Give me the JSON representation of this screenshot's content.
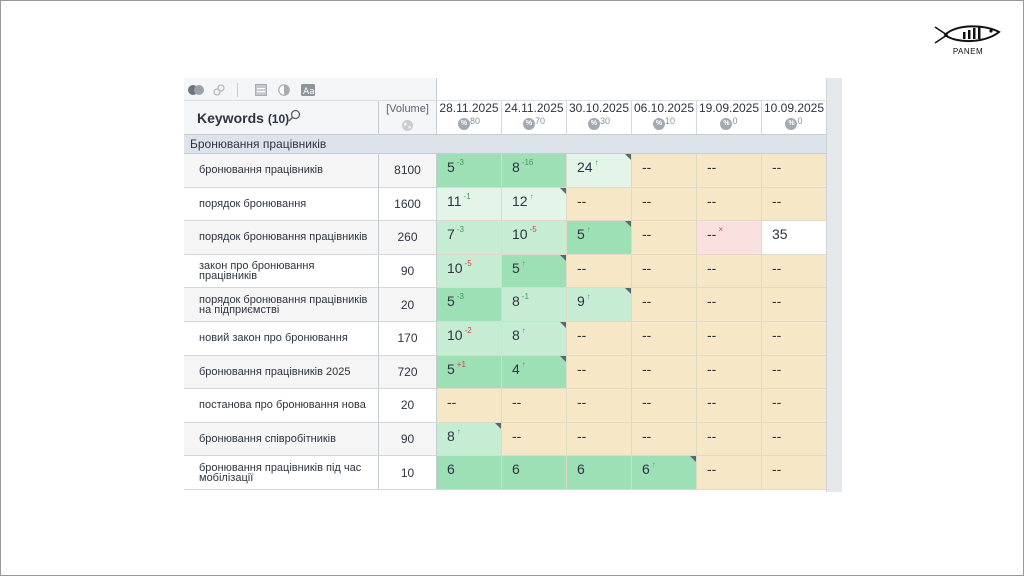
{
  "logo": {
    "name": "PANEM"
  },
  "colors": {
    "top3": "#9ee0b6",
    "top10": "#c6ecd4",
    "top20": "#e2f5e8",
    "none": "#f6e8c7",
    "lost": "#fbe0e0"
  },
  "toolbar": {
    "icons": [
      "toggle-icon",
      "link-icon",
      "calendar-icon",
      "contrast-icon",
      "text-size-icon"
    ]
  },
  "header": {
    "keywords_label": "Keywords",
    "keywords_count": "(10)",
    "volume_label": "[Volume]"
  },
  "dates": [
    {
      "date": "28.11.2025",
      "pct": "80"
    },
    {
      "date": "24.11.2025",
      "pct": "70"
    },
    {
      "date": "30.10.2025",
      "pct": "30"
    },
    {
      "date": "06.10.2025",
      "pct": "10"
    },
    {
      "date": "19.09.2025",
      "pct": "0"
    },
    {
      "date": "10.09.2025",
      "pct": "0"
    }
  ],
  "group": "Бронювання працівників",
  "rows": [
    {
      "keyword": "бронювання працівників",
      "volume": "8100",
      "cells": [
        {
          "v": "5",
          "d": "-3",
          "dir": "up",
          "bg": "top3",
          "tri": false
        },
        {
          "v": "8",
          "d": "-16",
          "dir": "up",
          "bg": "top3",
          "tri": false
        },
        {
          "v": "24",
          "d": "↑",
          "dir": "up",
          "bg": "top20",
          "tri": true
        },
        {
          "v": "--",
          "d": "",
          "dir": "",
          "bg": "none",
          "tri": false
        },
        {
          "v": "--",
          "d": "",
          "dir": "",
          "bg": "none",
          "tri": false
        },
        {
          "v": "--",
          "d": "",
          "dir": "",
          "bg": "none",
          "tri": false
        }
      ]
    },
    {
      "keyword": "порядок бронювання",
      "volume": "1600",
      "cells": [
        {
          "v": "11",
          "d": "-1",
          "dir": "up",
          "bg": "top20",
          "tri": false
        },
        {
          "v": "12",
          "d": "↑",
          "dir": "up",
          "bg": "top20",
          "tri": true
        },
        {
          "v": "--",
          "d": "",
          "dir": "",
          "bg": "none",
          "tri": false
        },
        {
          "v": "--",
          "d": "",
          "dir": "",
          "bg": "none",
          "tri": false
        },
        {
          "v": "--",
          "d": "",
          "dir": "",
          "bg": "none",
          "tri": false
        },
        {
          "v": "--",
          "d": "",
          "dir": "",
          "bg": "none",
          "tri": false
        }
      ]
    },
    {
      "keyword": "порядок бронювання працівників",
      "volume": "260",
      "cells": [
        {
          "v": "7",
          "d": "-3",
          "dir": "up",
          "bg": "top10",
          "tri": false
        },
        {
          "v": "10",
          "d": "-5",
          "dir": "down",
          "bg": "top10",
          "tri": false
        },
        {
          "v": "5",
          "d": "↑",
          "dir": "up",
          "bg": "top3",
          "tri": true
        },
        {
          "v": "--",
          "d": "",
          "dir": "",
          "bg": "none",
          "tri": false
        },
        {
          "v": "--",
          "d": "×",
          "dir": "lost",
          "bg": "lost",
          "tri": false
        },
        {
          "v": "35",
          "d": "",
          "dir": "",
          "bg": "white",
          "tri": false
        }
      ]
    },
    {
      "keyword": "закон про бронювання працівників",
      "volume": "90",
      "cells": [
        {
          "v": "10",
          "d": "-5",
          "dir": "down",
          "bg": "top10",
          "tri": false
        },
        {
          "v": "5",
          "d": "↑",
          "dir": "up",
          "bg": "top3",
          "tri": true
        },
        {
          "v": "--",
          "d": "",
          "dir": "",
          "bg": "none",
          "tri": false
        },
        {
          "v": "--",
          "d": "",
          "dir": "",
          "bg": "none",
          "tri": false
        },
        {
          "v": "--",
          "d": "",
          "dir": "",
          "bg": "none",
          "tri": false
        },
        {
          "v": "--",
          "d": "",
          "dir": "",
          "bg": "none",
          "tri": false
        }
      ]
    },
    {
      "keyword": "порядок бронювання працівників на підприємстві",
      "volume": "20",
      "cells": [
        {
          "v": "5",
          "d": "-3",
          "dir": "up",
          "bg": "top3",
          "tri": false
        },
        {
          "v": "8",
          "d": "-1",
          "dir": "up",
          "bg": "top10",
          "tri": false
        },
        {
          "v": "9",
          "d": "↑",
          "dir": "up",
          "bg": "top10",
          "tri": true
        },
        {
          "v": "--",
          "d": "",
          "dir": "",
          "bg": "none",
          "tri": false
        },
        {
          "v": "--",
          "d": "",
          "dir": "",
          "bg": "none",
          "tri": false
        },
        {
          "v": "--",
          "d": "",
          "dir": "",
          "bg": "none",
          "tri": false
        }
      ]
    },
    {
      "keyword": "новий закон про бронювання",
      "volume": "170",
      "cells": [
        {
          "v": "10",
          "d": "-2",
          "dir": "down",
          "bg": "top10",
          "tri": false
        },
        {
          "v": "8",
          "d": "↑",
          "dir": "up",
          "bg": "top10",
          "tri": true
        },
        {
          "v": "--",
          "d": "",
          "dir": "",
          "bg": "none",
          "tri": false
        },
        {
          "v": "--",
          "d": "",
          "dir": "",
          "bg": "none",
          "tri": false
        },
        {
          "v": "--",
          "d": "",
          "dir": "",
          "bg": "none",
          "tri": false
        },
        {
          "v": "--",
          "d": "",
          "dir": "",
          "bg": "none",
          "tri": false
        }
      ]
    },
    {
      "keyword": "бронювання працівників 2025",
      "volume": "720",
      "cells": [
        {
          "v": "5",
          "d": "+1",
          "dir": "down",
          "bg": "top3",
          "tri": false
        },
        {
          "v": "4",
          "d": "↑",
          "dir": "up",
          "bg": "top3",
          "tri": true
        },
        {
          "v": "--",
          "d": "",
          "dir": "",
          "bg": "none",
          "tri": false
        },
        {
          "v": "--",
          "d": "",
          "dir": "",
          "bg": "none",
          "tri": false
        },
        {
          "v": "--",
          "d": "",
          "dir": "",
          "bg": "none",
          "tri": false
        },
        {
          "v": "--",
          "d": "",
          "dir": "",
          "bg": "none",
          "tri": false
        }
      ]
    },
    {
      "keyword": "постанова про бронювання нова",
      "volume": "20",
      "cells": [
        {
          "v": "--",
          "d": "",
          "dir": "",
          "bg": "none",
          "tri": false
        },
        {
          "v": "--",
          "d": "",
          "dir": "",
          "bg": "none",
          "tri": false
        },
        {
          "v": "--",
          "d": "",
          "dir": "",
          "bg": "none",
          "tri": false
        },
        {
          "v": "--",
          "d": "",
          "dir": "",
          "bg": "none",
          "tri": false
        },
        {
          "v": "--",
          "d": "",
          "dir": "",
          "bg": "none",
          "tri": false
        },
        {
          "v": "--",
          "d": "",
          "dir": "",
          "bg": "none",
          "tri": false
        }
      ]
    },
    {
      "keyword": "бронювання співробітників",
      "volume": "90",
      "cells": [
        {
          "v": "8",
          "d": "↑",
          "dir": "up",
          "bg": "top10",
          "tri": true
        },
        {
          "v": "--",
          "d": "",
          "dir": "",
          "bg": "none",
          "tri": false
        },
        {
          "v": "--",
          "d": "",
          "dir": "",
          "bg": "none",
          "tri": false
        },
        {
          "v": "--",
          "d": "",
          "dir": "",
          "bg": "none",
          "tri": false
        },
        {
          "v": "--",
          "d": "",
          "dir": "",
          "bg": "none",
          "tri": false
        },
        {
          "v": "--",
          "d": "",
          "dir": "",
          "bg": "none",
          "tri": false
        }
      ]
    },
    {
      "keyword": "бронювання працівників під час мобілізації",
      "volume": "10",
      "cells": [
        {
          "v": "6",
          "d": "",
          "dir": "",
          "bg": "top3",
          "tri": false
        },
        {
          "v": "6",
          "d": "",
          "dir": "",
          "bg": "top3",
          "tri": false
        },
        {
          "v": "6",
          "d": "",
          "dir": "",
          "bg": "top3",
          "tri": false
        },
        {
          "v": "6",
          "d": "↑",
          "dir": "up",
          "bg": "top3",
          "tri": true
        },
        {
          "v": "--",
          "d": "",
          "dir": "",
          "bg": "none",
          "tri": false
        },
        {
          "v": "--",
          "d": "",
          "dir": "",
          "bg": "none",
          "tri": false
        }
      ]
    }
  ]
}
